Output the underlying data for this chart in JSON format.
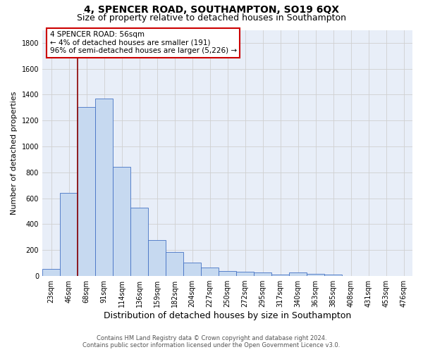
{
  "title": "4, SPENCER ROAD, SOUTHAMPTON, SO19 6QX",
  "subtitle": "Size of property relative to detached houses in Southampton",
  "xlabel": "Distribution of detached houses by size in Southampton",
  "ylabel": "Number of detached properties",
  "footer_line1": "Contains HM Land Registry data © Crown copyright and database right 2024.",
  "footer_line2": "Contains public sector information licensed under the Open Government Licence v3.0.",
  "annotation_title": "4 SPENCER ROAD: 56sqm",
  "annotation_line1": "← 4% of detached houses are smaller (191)",
  "annotation_line2": "96% of semi-detached houses are larger (5,226) →",
  "bar_labels": [
    "23sqm",
    "46sqm",
    "68sqm",
    "91sqm",
    "114sqm",
    "136sqm",
    "159sqm",
    "182sqm",
    "204sqm",
    "227sqm",
    "250sqm",
    "272sqm",
    "295sqm",
    "317sqm",
    "340sqm",
    "363sqm",
    "385sqm",
    "408sqm",
    "431sqm",
    "453sqm",
    "476sqm"
  ],
  "bar_values": [
    55,
    640,
    1305,
    1370,
    845,
    530,
    280,
    185,
    105,
    65,
    40,
    35,
    25,
    12,
    25,
    18,
    12,
    0,
    0,
    0,
    0
  ],
  "bar_color": "#c6d9f0",
  "bar_edge_color": "#4472c4",
  "vline_color": "#8b0000",
  "grid_color": "#d0d0d0",
  "background_color": "#e8eef8",
  "ylim": [
    0,
    1900
  ],
  "yticks": [
    0,
    200,
    400,
    600,
    800,
    1000,
    1200,
    1400,
    1600,
    1800
  ],
  "title_fontsize": 10,
  "subtitle_fontsize": 9,
  "xlabel_fontsize": 9,
  "ylabel_fontsize": 8,
  "tick_fontsize": 7,
  "annotation_box_color": "white",
  "annotation_box_edge": "#cc0000",
  "annotation_fontsize": 7.5
}
